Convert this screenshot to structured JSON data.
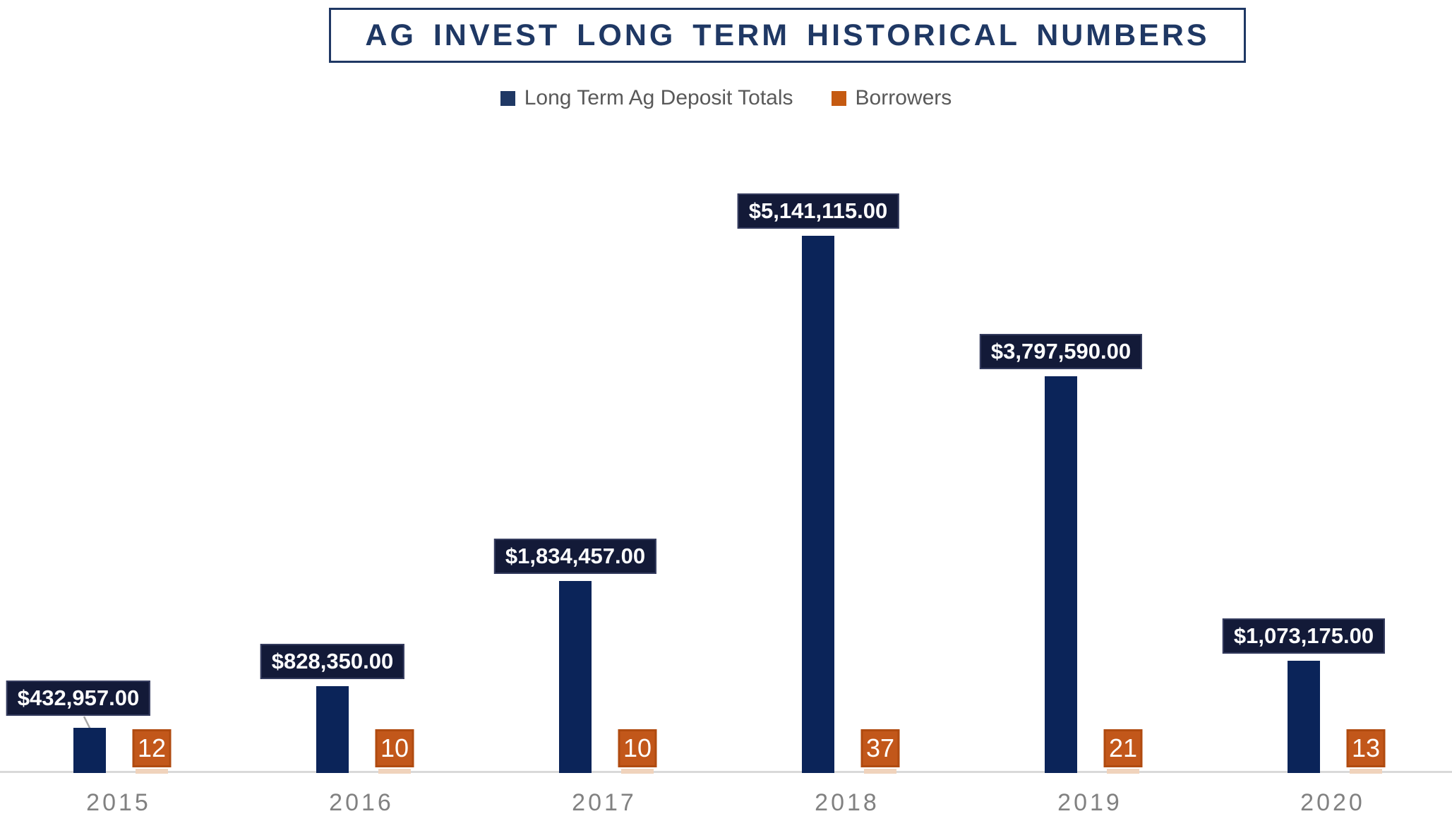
{
  "title": "AG INVEST LONG TERM HISTORICAL NUMBERS",
  "legend": {
    "deposits_label": "Long Term Ag Deposit Totals",
    "borrowers_label": "Borrowers"
  },
  "colors": {
    "title_navy": "#1F3864",
    "bar_navy": "#0B2459",
    "value_label_bg": "#131A38",
    "legend_navy_swatch": "#1F3864",
    "orange": "#C2571A",
    "orange_border": "#B04B10",
    "orange_sliver": "#F0D3BC",
    "axis_gray": "#D9D9D9",
    "legend_text_gray": "#595959",
    "year_text_gray": "#818181",
    "leader_gray": "#A6A6A6"
  },
  "chart_data": {
    "type": "bar",
    "title": "AG INVEST LONG TERM HISTORICAL NUMBERS",
    "categories": [
      "2015",
      "2016",
      "2017",
      "2018",
      "2019",
      "2020"
    ],
    "series": [
      {
        "name": "Long Term Ag Deposit Totals",
        "color": "#0B2459",
        "values": [
          432957,
          828350,
          1834457,
          5141115,
          3797590,
          1073175
        ],
        "value_labels": [
          "$432,957.00",
          "$828,350.00",
          "$1,834,457.00",
          "$5,141,115.00",
          "$3,797,590.00",
          "$1,073,175.00"
        ]
      },
      {
        "name": "Borrowers",
        "color": "#C2571A",
        "values": [
          12,
          10,
          10,
          37,
          21,
          13
        ],
        "value_labels": [
          "12",
          "10",
          "10",
          "37",
          "21",
          "13"
        ]
      }
    ],
    "xlabel": "",
    "ylabel": "",
    "y_axis_visible": false,
    "gridlines": false,
    "legend_position": "top",
    "data_labels": "on",
    "label_callout_with_leader_line": [
      "2015"
    ]
  }
}
